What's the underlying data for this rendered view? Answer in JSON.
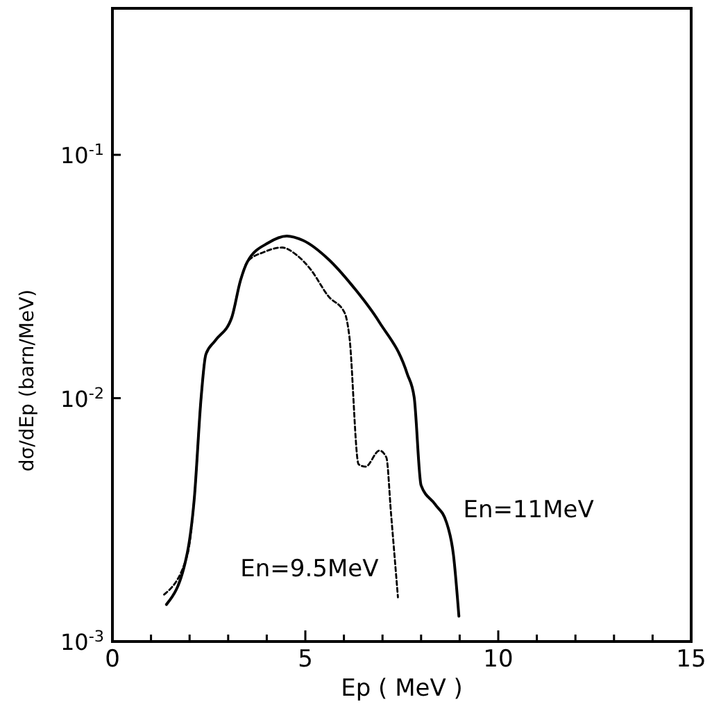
{
  "chart_data": {
    "type": "line",
    "xlabel": "Ep ( MeV )",
    "ylabel": "dσ/dEp (barn/MeV)",
    "log": "y",
    "xlim": [
      0,
      15
    ],
    "xticks": [
      0,
      {
        "value": 1,
        "label": null
      },
      {
        "value": 2,
        "label": null
      },
      {
        "value": 3,
        "label": null
      },
      {
        "value": 4,
        "label": null
      },
      5,
      {
        "value": 6,
        "label": null
      },
      {
        "value": 7,
        "label": null
      },
      {
        "value": 8,
        "label": null
      },
      {
        "value": 9,
        "label": null
      },
      10,
      {
        "value": 11,
        "label": null
      },
      {
        "value": 12,
        "label": null
      },
      {
        "value": 13,
        "label": null
      },
      {
        "value": 14,
        "label": null
      },
      15
    ],
    "ylim": [
      0.001,
      0.4
    ],
    "yticks": [
      {
        "value": 0.001,
        "label": "10$^{-3}$"
      },
      {
        "value": 0.01,
        "label": "10$^{-2}$"
      },
      {
        "value": 0.1,
        "label": "10$^{-1}$"
      }
    ],
    "grid": false,
    "marker": "none",
    "series": [
      {
        "name": "En=11MeV",
        "color": "#000000",
        "line_style": "solid",
        "x": [
          1.4,
          1.94,
          2.12,
          2.3,
          2.42,
          2.66,
          3.09,
          3.32,
          3.5,
          4.04,
          4.52,
          4.94,
          5.6,
          6.2,
          6.92,
          7.64,
          7.82,
          8.0,
          8.36,
          8.66,
          8.84,
          8.98
        ],
        "values": [
          0.00142,
          0.00231,
          0.00384,
          0.0101,
          0.0151,
          0.0172,
          0.0214,
          0.0305,
          0.0364,
          0.0435,
          0.0464,
          0.0445,
          0.0372,
          0.0292,
          0.0205,
          0.0126,
          0.0101,
          0.00438,
          0.00367,
          0.00308,
          0.00226,
          0.00127
        ]
      },
      {
        "name": "En=9.5MeV",
        "color": "#000000",
        "line_style": "dashed",
        "x": [
          1.34,
          1.94,
          2.12,
          2.3,
          2.42,
          2.66,
          3.09,
          3.32,
          3.5,
          3.92,
          4.4,
          4.76,
          5.12,
          5.6,
          6.02,
          6.14,
          6.38,
          6.56,
          6.92,
          7.1,
          7.22,
          7.4
        ],
        "values": [
          0.00156,
          0.00226,
          0.00384,
          0.0101,
          0.0151,
          0.0172,
          0.0214,
          0.0305,
          0.0364,
          0.0398,
          0.0416,
          0.0389,
          0.0341,
          0.0262,
          0.0224,
          0.018,
          0.00535,
          0.00523,
          0.00609,
          0.00571,
          0.00337,
          0.00152
        ]
      }
    ]
  }
}
